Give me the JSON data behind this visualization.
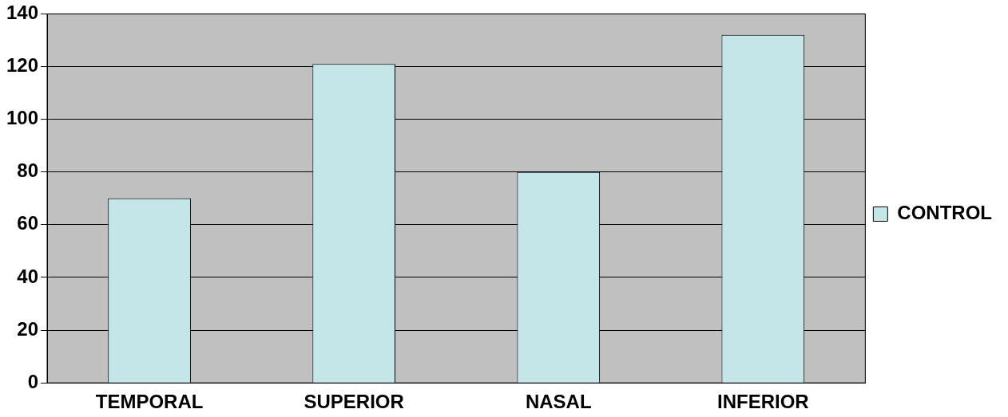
{
  "chart_data": {
    "type": "bar",
    "categories": [
      "TEMPORAL",
      "SUPERIOR",
      "NASAL",
      "INFERIOR"
    ],
    "series": [
      {
        "name": "CONTROL",
        "color": "#c5e6e8",
        "values": [
          70,
          121,
          80,
          132
        ]
      }
    ],
    "ylim": [
      0,
      140
    ],
    "yticks": [
      0,
      20,
      40,
      60,
      80,
      100,
      120,
      140
    ],
    "grid": "y",
    "legend": "right"
  }
}
